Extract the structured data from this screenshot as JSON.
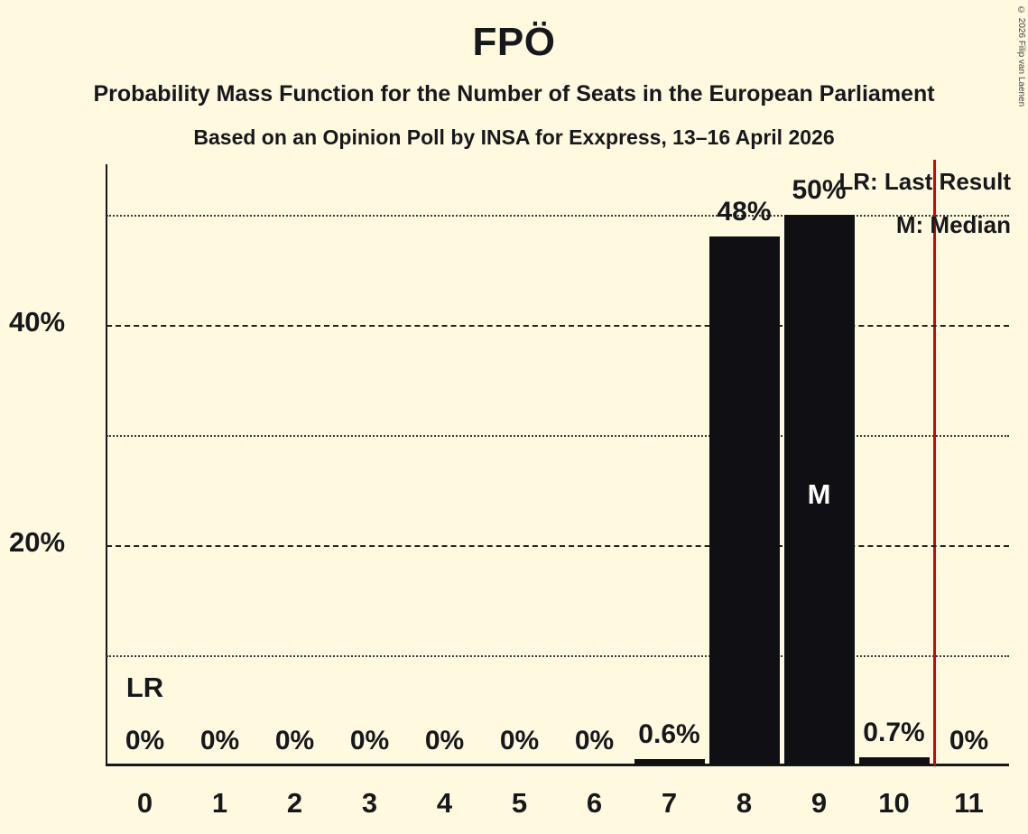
{
  "title": "FPÖ",
  "subtitle1": "Probability Mass Function for the Number of Seats in the European Parliament",
  "subtitle2": "Based on an Opinion Poll by INSA for Exxpress, 13–16 April 2026",
  "copyright": "© 2026 Filip van Laenen",
  "legend": {
    "lr": "LR: Last Result",
    "m": "M: Median"
  },
  "colors": {
    "background": "#FFF9E0",
    "bar": "#101014",
    "text": "#17181C",
    "red_line": "#DC0000",
    "median_text": "#FFFFFF"
  },
  "chart_data": {
    "type": "bar",
    "title": "FPÖ",
    "categories": [
      "0",
      "1",
      "2",
      "3",
      "4",
      "5",
      "6",
      "7",
      "8",
      "9",
      "10",
      "11"
    ],
    "values": [
      0,
      0,
      0,
      0,
      0,
      0,
      0,
      0.6,
      48,
      50,
      0.7,
      0
    ],
    "value_labels": [
      "0%",
      "0%",
      "0%",
      "0%",
      "0%",
      "0%",
      "0%",
      "0.6%",
      "48%",
      "50%",
      "0.7%",
      "0%"
    ],
    "ylim": [
      0,
      55
    ],
    "gridlines_dotted": [
      10,
      30,
      50
    ],
    "gridlines_dashed": [
      20,
      40
    ],
    "ytick_labels": [
      {
        "value": 20,
        "label": "20%"
      },
      {
        "value": 40,
        "label": "40%"
      }
    ],
    "median_category": "9",
    "median_marker": "M",
    "last_result_marker": "LR",
    "last_result_category": "0",
    "red_line_x_seats": 10.53,
    "legend_position": "top-right",
    "grid": true
  }
}
